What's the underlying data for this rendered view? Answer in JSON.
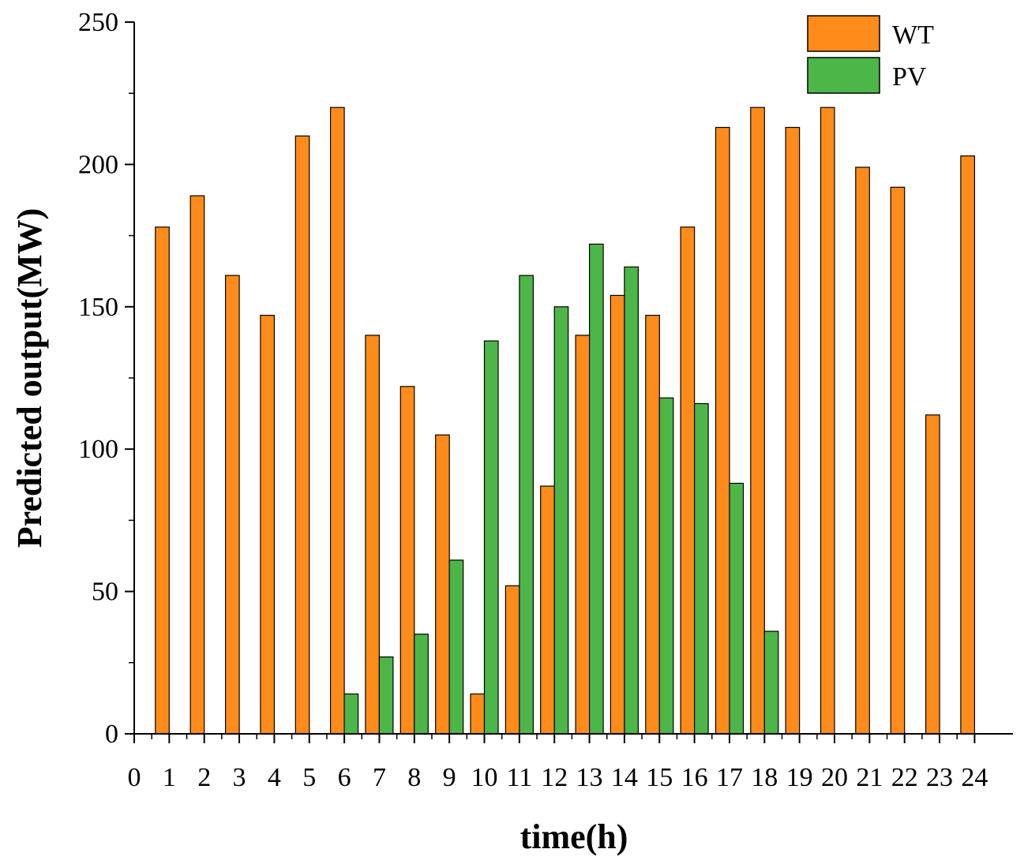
{
  "chart_data": {
    "type": "bar",
    "title": "",
    "xlabel": "time(h)",
    "ylabel": "Predicted output(MW)",
    "ylim": [
      0,
      250
    ],
    "yticks": [
      0,
      50,
      100,
      150,
      200,
      250
    ],
    "xtick_labels": [
      "0",
      "1",
      "2",
      "3",
      "4",
      "5",
      "6",
      "7",
      "8",
      "9",
      "10",
      "11",
      "12",
      "13",
      "14",
      "15",
      "16",
      "17",
      "18",
      "19",
      "20",
      "21",
      "22",
      "23",
      "24"
    ],
    "categories": [
      1,
      2,
      3,
      4,
      5,
      6,
      7,
      8,
      9,
      10,
      11,
      12,
      13,
      14,
      15,
      16,
      17,
      18,
      19,
      20,
      21,
      22,
      23,
      24
    ],
    "series": [
      {
        "name": "WT",
        "color": "#FF8C1A",
        "values": [
          178,
          189,
          161,
          147,
          210,
          220,
          140,
          122,
          105,
          14,
          52,
          87,
          140,
          154,
          147,
          178,
          213,
          220,
          213,
          220,
          199,
          192,
          112,
          203
        ]
      },
      {
        "name": "PV",
        "color": "#4CB648",
        "values": [
          0,
          0,
          0,
          0,
          0,
          14,
          27,
          35,
          61,
          138,
          161,
          150,
          172,
          164,
          118,
          116,
          88,
          36,
          0,
          0,
          0,
          0,
          0,
          0
        ]
      }
    ],
    "legend_position": "top-right",
    "grid": false
  }
}
